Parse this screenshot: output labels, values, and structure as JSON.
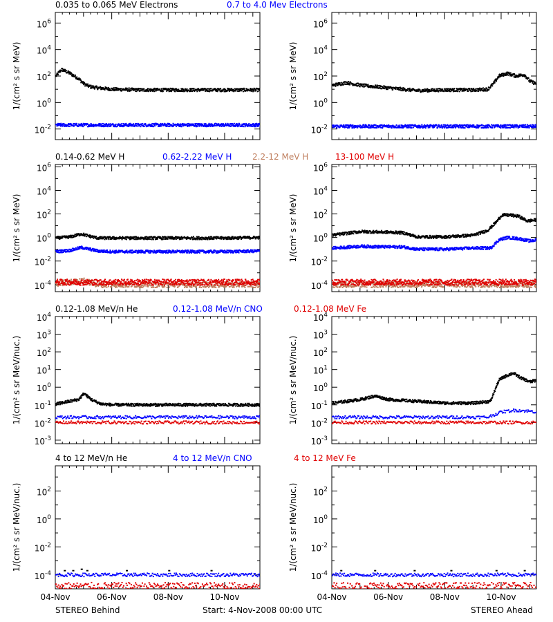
{
  "colors": {
    "black": "#000000",
    "blue": "#0000ff",
    "tan": "#c08060",
    "red": "#e00000"
  },
  "footer": {
    "left": "STEREO Behind",
    "center": "Start:  4-Nov-2008 00:00 UTC",
    "right": "STEREO Ahead"
  },
  "rows": [
    {
      "ylabel": "1/(cm² s sr MeV)",
      "legend": [
        {
          "text": "0.035 to 0.065 MeV Electrons",
          "color": "#000000"
        },
        {
          "text": "0.7 to 4.0 Mev Electrons",
          "color": "#0000ff"
        }
      ],
      "yticks": [
        {
          "exp": -2,
          "label": "10",
          "sup": "-2"
        },
        {
          "exp": 0,
          "label": "10",
          "sup": "0"
        },
        {
          "exp": 2,
          "label": "10",
          "sup": "2"
        },
        {
          "exp": 4,
          "label": "10",
          "sup": "4"
        },
        {
          "exp": 6,
          "label": "10",
          "sup": "6"
        }
      ]
    },
    {
      "ylabel": "1/(cm² s sr MeV)",
      "legend": [
        {
          "text": "0.14-0.62 MeV H",
          "color": "#000000"
        },
        {
          "text": "0.62-2.22 MeV H",
          "color": "#0000ff"
        },
        {
          "text": "2.2-12 MeV H",
          "color": "#c08060"
        },
        {
          "text": "13-100 MeV H",
          "color": "#e00000"
        }
      ],
      "yticks": [
        {
          "exp": -4,
          "label": "10",
          "sup": "-4"
        },
        {
          "exp": -2,
          "label": "10",
          "sup": "-2"
        },
        {
          "exp": 0,
          "label": "10",
          "sup": "0"
        },
        {
          "exp": 2,
          "label": "10",
          "sup": "2"
        },
        {
          "exp": 4,
          "label": "10",
          "sup": "4"
        },
        {
          "exp": 6,
          "label": "10",
          "sup": "6"
        }
      ]
    },
    {
      "ylabel": "1/(cm² s sr MeV/nuc.)",
      "legend": [
        {
          "text": "0.12-1.08 MeV/n He",
          "color": "#000000"
        },
        {
          "text": "0.12-1.08 MeV/n CNO",
          "color": "#0000ff"
        },
        {
          "text": "0.12-1.08 MeV Fe",
          "color": "#e00000"
        }
      ],
      "yticks": [
        {
          "exp": -3,
          "label": "10",
          "sup": "-3"
        },
        {
          "exp": -2,
          "label": "10",
          "sup": "-2"
        },
        {
          "exp": -1,
          "label": "10",
          "sup": "-1"
        },
        {
          "exp": 0,
          "label": "10",
          "sup": "0"
        },
        {
          "exp": 1,
          "label": "10",
          "sup": "1"
        },
        {
          "exp": 2,
          "label": "10",
          "sup": "2"
        },
        {
          "exp": 3,
          "label": "10",
          "sup": "3"
        },
        {
          "exp": 4,
          "label": "10",
          "sup": "4"
        }
      ]
    },
    {
      "ylabel": "1/(cm² s sr MeV/nuc.)",
      "legend": [
        {
          "text": "4 to 12 MeV/n He",
          "color": "#000000"
        },
        {
          "text": "4 to 12 MeV/n CNO",
          "color": "#0000ff"
        },
        {
          "text": "4 to 12 MeV Fe",
          "color": "#e00000"
        }
      ],
      "yticks": [
        {
          "exp": -4,
          "label": "10",
          "sup": "-4"
        },
        {
          "exp": -2,
          "label": "10",
          "sup": "-2"
        },
        {
          "exp": 0,
          "label": "10",
          "sup": "0"
        },
        {
          "exp": 2,
          "label": "10",
          "sup": "2"
        }
      ]
    }
  ],
  "xticks": [
    "04-Nov",
    "06-Nov",
    "08-Nov",
    "10-Nov"
  ],
  "chart_data": [
    {
      "type": "scatter",
      "panel": "electrons-behind",
      "ylog": true,
      "ylim_exp": [
        -2.8,
        6.8
      ],
      "xlim_days": [
        "04-Nov",
        "11-Nov 06:00"
      ],
      "series": [
        {
          "name": "0.035 to 0.065 MeV Electrons",
          "color": "#000000",
          "x": [
            0,
            0.2,
            0.3,
            0.5,
            0.8,
            1.0,
            1.2,
            1.5,
            2,
            3,
            4,
            5,
            6,
            7,
            7.25
          ],
          "log10_y": [
            2.0,
            2.5,
            2.4,
            2.2,
            1.8,
            1.4,
            1.2,
            1.1,
            1.0,
            0.95,
            0.95,
            0.95,
            0.95,
            0.95,
            0.95
          ]
        },
        {
          "name": "0.7 to 4.0 Mev Electrons",
          "color": "#0000ff",
          "x": [
            0,
            7.25
          ],
          "log10_y": [
            -1.7,
            -1.7
          ]
        }
      ]
    },
    {
      "type": "scatter",
      "panel": "electrons-ahead",
      "ylog": true,
      "ylim_exp": [
        -2.8,
        6.8
      ],
      "xlim_days": [
        "04-Nov",
        "11-Nov 06:00"
      ],
      "series": [
        {
          "name": "0.035 to 0.065 MeV Electrons",
          "color": "#000000",
          "x": [
            0,
            0.5,
            1.0,
            2,
            3,
            4,
            5,
            5.5,
            5.7,
            5.9,
            6.2,
            6.5,
            6.8,
            7.0,
            7.25
          ],
          "log10_y": [
            1.3,
            1.5,
            1.3,
            1.1,
            0.9,
            0.95,
            0.95,
            1.0,
            1.4,
            2.0,
            2.2,
            2.0,
            2.1,
            1.6,
            1.4
          ]
        },
        {
          "name": "0.7 to 4.0 Mev Electrons",
          "color": "#0000ff",
          "x": [
            0,
            7.25
          ],
          "log10_y": [
            -1.8,
            -1.8
          ]
        }
      ]
    },
    {
      "type": "scatter",
      "panel": "protons-behind",
      "ylog": true,
      "ylim_exp": [
        -4.6,
        6.2
      ],
      "xlim_days": [
        "04-Nov",
        "11-Nov 06:00"
      ],
      "series": [
        {
          "name": "0.14-0.62 MeV H",
          "color": "#000000",
          "x": [
            0,
            0.5,
            0.9,
            1.2,
            1.5,
            2,
            3,
            4,
            5,
            6,
            7.25
          ],
          "log10_y": [
            -0.05,
            0.05,
            0.3,
            0.1,
            -0.05,
            -0.05,
            -0.05,
            -0.05,
            -0.05,
            -0.05,
            0.0
          ]
        },
        {
          "name": "0.62-2.22 MeV H",
          "color": "#0000ff",
          "x": [
            0,
            0.5,
            0.9,
            1.2,
            1.5,
            2,
            4,
            6,
            7.25
          ],
          "log10_y": [
            -1.2,
            -1.1,
            -0.85,
            -1.0,
            -1.15,
            -1.2,
            -1.2,
            -1.2,
            -1.15
          ]
        },
        {
          "name": "2.2-12 MeV H",
          "color": "#c08060",
          "x": [
            0,
            1.0,
            1.5,
            7.25
          ],
          "log10_y": [
            -3.9,
            -3.7,
            -4.0,
            -4.0
          ]
        },
        {
          "name": "13-100 MeV H",
          "color": "#e00000",
          "x": [
            0,
            7.25
          ],
          "log10_y": [
            -3.8,
            -3.8
          ]
        }
      ]
    },
    {
      "type": "scatter",
      "panel": "protons-ahead",
      "ylog": true,
      "ylim_exp": [
        -4.6,
        6.2
      ],
      "xlim_days": [
        "04-Nov",
        "11-Nov 06:00"
      ],
      "series": [
        {
          "name": "0.14-0.62 MeV H",
          "color": "#000000",
          "x": [
            0,
            1,
            2,
            2.5,
            3,
            4,
            5,
            5.5,
            5.8,
            6.0,
            6.3,
            6.6,
            6.9,
            7.25
          ],
          "log10_y": [
            0.2,
            0.5,
            0.45,
            0.4,
            0.05,
            0.05,
            0.2,
            0.6,
            1.3,
            1.9,
            1.9,
            1.8,
            1.4,
            1.5
          ]
        },
        {
          "name": "0.62-2.22 MeV H",
          "color": "#0000ff",
          "x": [
            0,
            1,
            2,
            2.5,
            3,
            4,
            5,
            5.6,
            5.9,
            6.2,
            6.6,
            7.0,
            7.25
          ],
          "log10_y": [
            -0.9,
            -0.75,
            -0.8,
            -0.8,
            -1.0,
            -1.0,
            -0.9,
            -0.9,
            -0.2,
            0.0,
            -0.1,
            -0.3,
            -0.2
          ]
        },
        {
          "name": "2.2-12 MeV H",
          "color": "#c08060",
          "x": [
            0,
            7.25
          ],
          "log10_y": [
            -4.0,
            -4.0
          ]
        },
        {
          "name": "13-100 MeV H",
          "color": "#e00000",
          "x": [
            0,
            7.25
          ],
          "log10_y": [
            -3.8,
            -3.8
          ]
        }
      ]
    },
    {
      "type": "scatter",
      "panel": "heavy-low-behind",
      "ylog": true,
      "ylim_exp": [
        -3.2,
        4.0
      ],
      "xlim_days": [
        "04-Nov",
        "11-Nov 06:00"
      ],
      "series": [
        {
          "name": "0.12-1.08 MeV/n He",
          "color": "#000000",
          "x": [
            0,
            0.8,
            1.0,
            1.1,
            1.3,
            1.6,
            2,
            3,
            4,
            5,
            6,
            7.25
          ],
          "log10_y": [
            -0.95,
            -0.7,
            -0.35,
            -0.5,
            -0.75,
            -0.95,
            -1.0,
            -1.0,
            -1.0,
            -1.0,
            -1.0,
            -1.0
          ]
        },
        {
          "name": "0.12-1.08 MeV/n CNO",
          "color": "#0000ff",
          "x": [
            0,
            7.25
          ],
          "log10_y": [
            -1.7,
            -1.7
          ]
        },
        {
          "name": "0.12-1.08 MeV Fe",
          "color": "#e00000",
          "x": [
            0,
            7.25
          ],
          "log10_y": [
            -2.0,
            -2.0
          ]
        }
      ]
    },
    {
      "type": "scatter",
      "panel": "heavy-low-ahead",
      "ylog": true,
      "ylim_exp": [
        -3.2,
        4.0
      ],
      "xlim_days": [
        "04-Nov",
        "11-Nov 06:00"
      ],
      "series": [
        {
          "name": "0.12-1.08 MeV/n He",
          "color": "#000000",
          "x": [
            0,
            1,
            1.5,
            2,
            3,
            4,
            5,
            5.6,
            5.9,
            6.1,
            6.4,
            6.7,
            7.0,
            7.25
          ],
          "log10_y": [
            -0.9,
            -0.7,
            -0.5,
            -0.7,
            -0.8,
            -0.9,
            -0.9,
            -0.8,
            0.4,
            0.6,
            0.8,
            0.5,
            0.3,
            0.4
          ]
        },
        {
          "name": "0.12-1.08 MeV/n CNO",
          "color": "#0000ff",
          "x": [
            0,
            5.5,
            6.0,
            6.5,
            7.25
          ],
          "log10_y": [
            -1.7,
            -1.7,
            -1.4,
            -1.3,
            -1.4
          ]
        },
        {
          "name": "0.12-1.08 MeV Fe",
          "color": "#e00000",
          "x": [
            0,
            7.25
          ],
          "log10_y": [
            -2.0,
            -2.0
          ]
        }
      ]
    },
    {
      "type": "scatter",
      "panel": "heavy-high-behind",
      "ylog": true,
      "ylim_exp": [
        -5.0,
        3.8
      ],
      "xlim_days": [
        "04-Nov",
        "11-Nov 06:00"
      ],
      "series": [
        {
          "name": "4 to 12 MeV/n He",
          "color": "#000000",
          "x": [
            0.3,
            0.6,
            0.9,
            1.1,
            2.5,
            4.0,
            5.5
          ],
          "log10_y": [
            -3.7,
            -3.7,
            -3.6,
            -3.7,
            -3.7,
            -3.7,
            -3.7
          ]
        },
        {
          "name": "4 to 12 MeV/n CNO",
          "color": "#0000ff",
          "x": [
            0,
            7.25
          ],
          "log10_y": [
            -4.0,
            -4.0
          ]
        },
        {
          "name": "4 to 12 MeV Fe",
          "color": "#e00000",
          "x": [
            0,
            7.25
          ],
          "log10_y": [
            -4.8,
            -4.8
          ]
        }
      ]
    },
    {
      "type": "scatter",
      "panel": "heavy-high-ahead",
      "ylog": true,
      "ylim_exp": [
        -5.0,
        3.8
      ],
      "xlim_days": [
        "04-Nov",
        "11-Nov 06:00"
      ],
      "series": [
        {
          "name": "4 to 12 MeV/n He",
          "color": "#000000",
          "x": [
            0.3,
            1.5,
            2.9,
            4.2,
            5.8,
            6.8
          ],
          "log10_y": [
            -3.7,
            -3.7,
            -3.7,
            -3.7,
            -3.7,
            -3.7
          ]
        },
        {
          "name": "4 to 12 MeV/n CNO",
          "color": "#0000ff",
          "x": [
            0,
            7.25
          ],
          "log10_y": [
            -4.0,
            -4.0
          ]
        },
        {
          "name": "4 to 12 MeV Fe",
          "color": "#e00000",
          "x": [
            0,
            7.25
          ],
          "log10_y": [
            -4.8,
            -4.8
          ]
        }
      ]
    }
  ]
}
